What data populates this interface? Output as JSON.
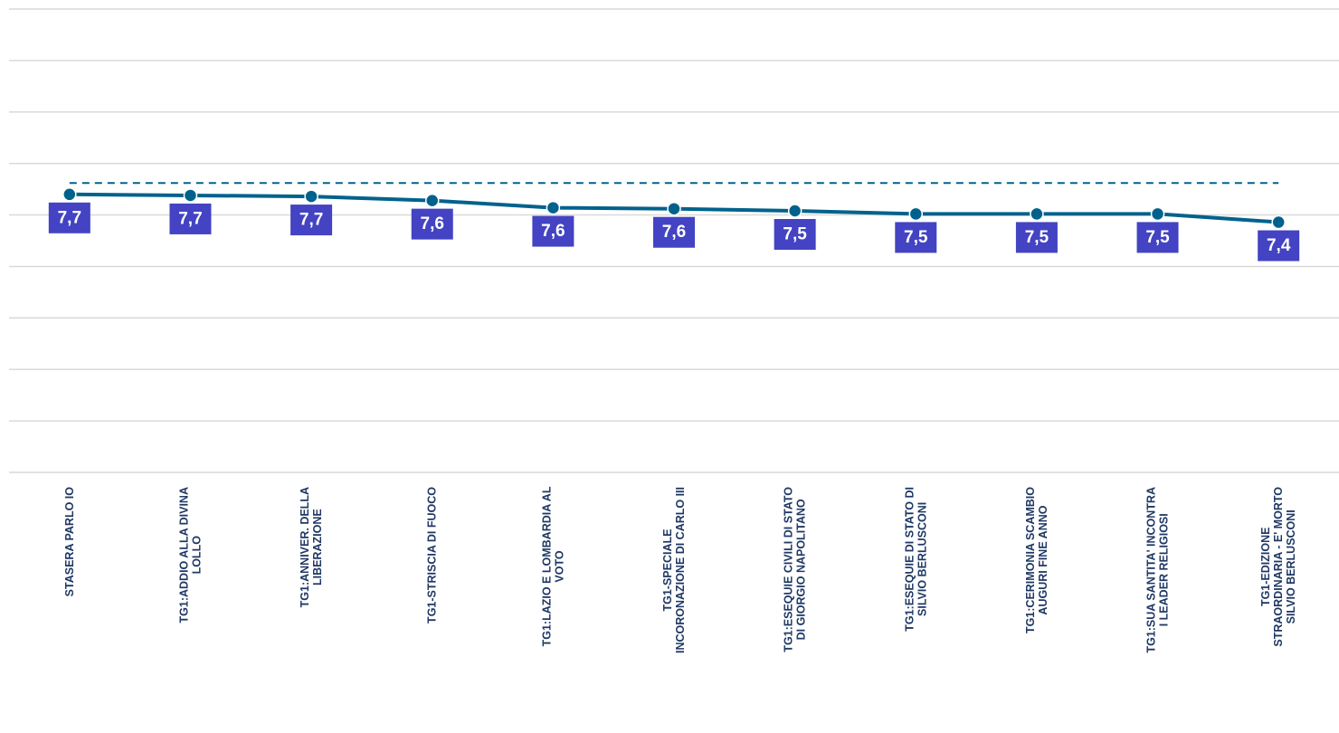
{
  "chart_data": {
    "type": "line",
    "categories": [
      "STASERA PARLO IO",
      "TG1:ADDIO ALLA DIVINA\nLOLLO",
      "TG1:ANNIVER. DELLA\nLIBERAZIONE",
      "TG1-STRISCIA DI FUOCO",
      "TG1:LAZIO E LOMBARDIA AL\nVOTO",
      "TG1-SPECIALE\nINCORONAZIONE DI CARLO III",
      "TG1:ESEQUIE CIVILI DI STATO\nDI GIORGIO NAPOLITANO",
      "TG1:ESEQUIE DI STATO DI\nSILVIO BERLUSCONI",
      "TG1:CERIMONIA SCAMBIO\nAUGURI FINE ANNO",
      "TG1:SUA SANTITA' INCONTRA\nI LEADER RELIGIOSI",
      "TG1-EDIZIONE\nSTRAORDINARIA - E' MORTO\nSILVIO BERLUSCONI"
    ],
    "series": [
      {
        "color": "#00628c",
        "values": [
          7.7,
          7.69,
          7.68,
          7.64,
          7.57,
          7.56,
          7.54,
          7.51,
          7.51,
          7.51,
          7.43
        ],
        "value_labels": [
          "7,7",
          "7,7",
          "7,7",
          "7,6",
          "7,6",
          "7,6",
          "7,5",
          "7,5",
          "7,5",
          "7,5",
          "7,4"
        ]
      }
    ],
    "reference_line": {
      "value": 7.81,
      "color": "#00628c",
      "dashed": true
    },
    "label_color": "#4343c3",
    "ylim": [
      5,
      9.5
    ],
    "yticks": [
      5,
      5.5,
      6,
      6.5,
      7,
      7.5,
      8,
      8.5,
      9,
      9.5
    ],
    "grid": true
  }
}
